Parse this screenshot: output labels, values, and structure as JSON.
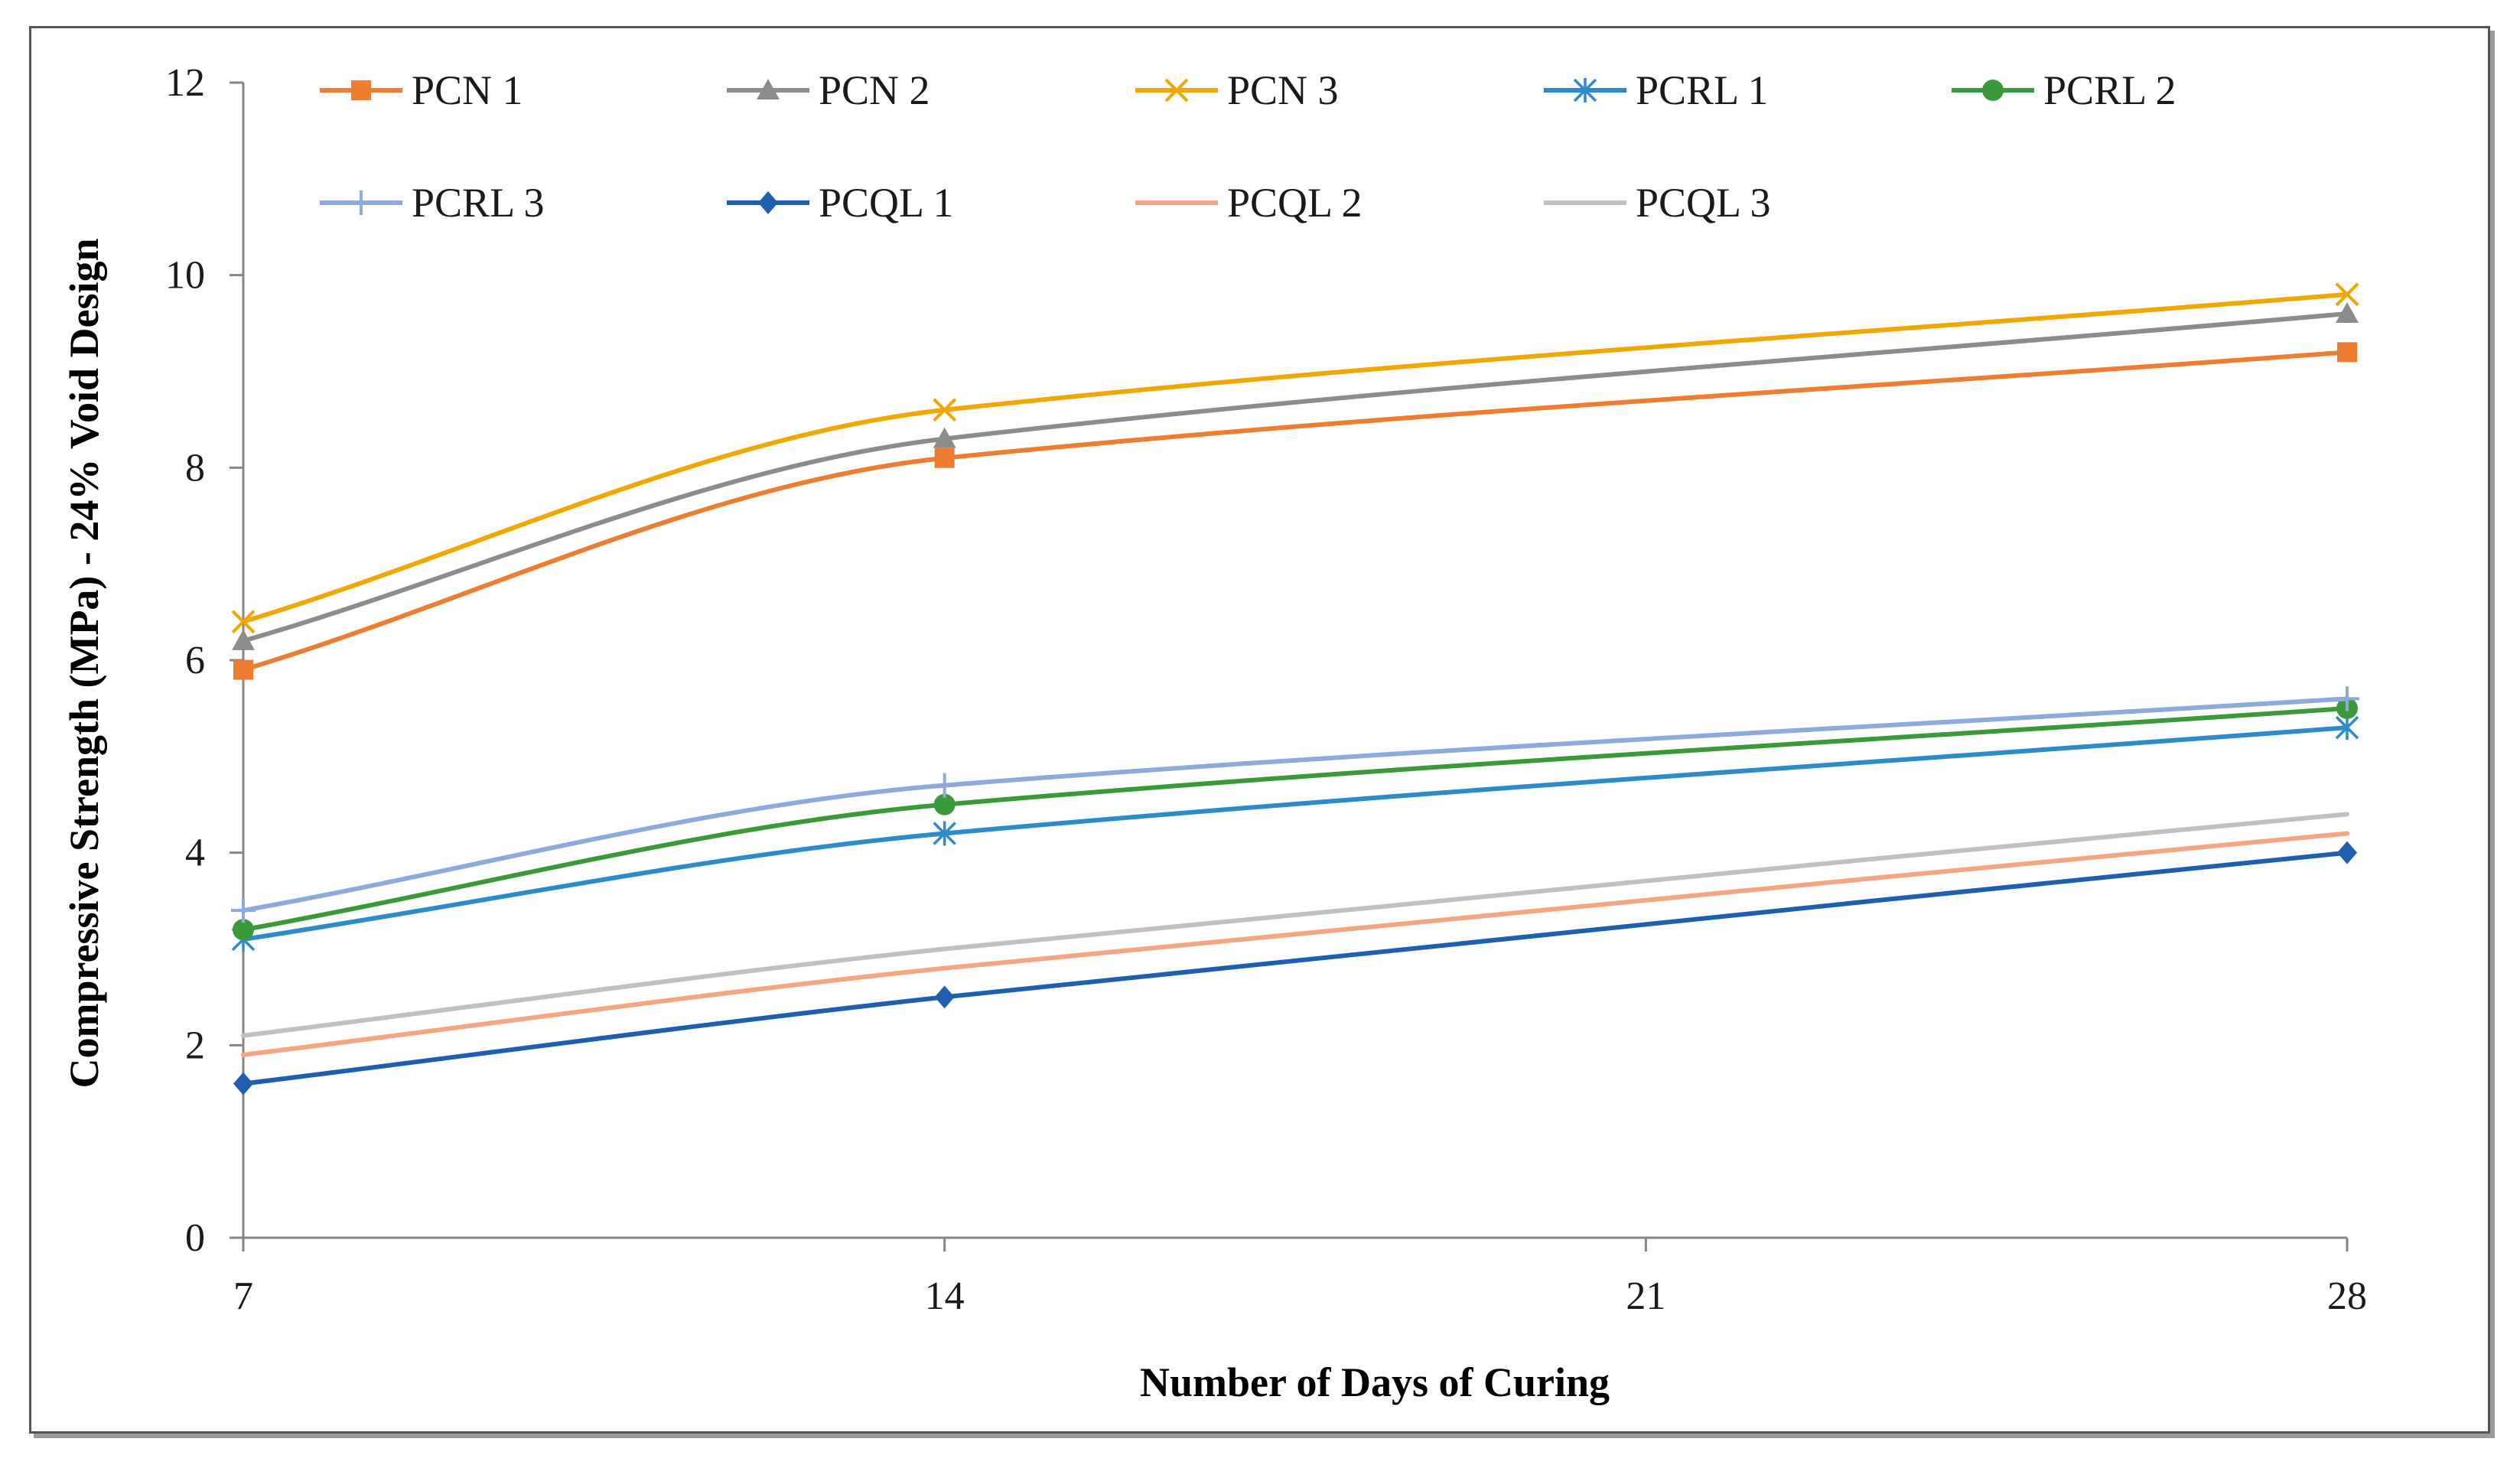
{
  "chart_data": {
    "type": "line",
    "title": "",
    "xlabel": "Number of Days of Curing",
    "ylabel": "Compressive Strength (MPa) - 24% Void Design",
    "xlim": [
      7,
      28
    ],
    "ylim": [
      0,
      12
    ],
    "x_ticks": [
      7,
      14,
      21,
      28
    ],
    "y_ticks": [
      0,
      2,
      4,
      6,
      8,
      10,
      12
    ],
    "x": [
      7,
      14,
      28
    ],
    "grid": false,
    "legend": "top",
    "series": [
      {
        "name": "PCN 1",
        "values": [
          5.9,
          8.1,
          9.2
        ],
        "color": "#ED7D31",
        "marker": "square"
      },
      {
        "name": "PCN 2",
        "values": [
          6.2,
          8.3,
          9.6
        ],
        "color": "#8C8C8C",
        "marker": "triangle"
      },
      {
        "name": "PCN 3",
        "values": [
          6.4,
          8.6,
          9.8
        ],
        "color": "#F0A800",
        "marker": "x"
      },
      {
        "name": "PCRL 1",
        "values": [
          3.1,
          4.2,
          5.3
        ],
        "color": "#2E8BC9",
        "marker": "star"
      },
      {
        "name": "PCRL 2",
        "values": [
          3.2,
          4.5,
          5.5
        ],
        "color": "#3A9A3A",
        "marker": "circle"
      },
      {
        "name": "PCRL 3",
        "values": [
          3.4,
          4.7,
          5.6
        ],
        "color": "#8EA9DB",
        "marker": "plus"
      },
      {
        "name": "PCQL 1",
        "values": [
          1.6,
          2.5,
          4.0
        ],
        "color": "#1F5FAF",
        "marker": "diamond"
      },
      {
        "name": "PCQL 2",
        "values": [
          1.9,
          2.8,
          4.2
        ],
        "color": "#F4A582",
        "marker": "none"
      },
      {
        "name": "PCQL 3",
        "values": [
          2.1,
          3.0,
          4.4
        ],
        "color": "#C0C0C0",
        "marker": "none"
      }
    ]
  }
}
